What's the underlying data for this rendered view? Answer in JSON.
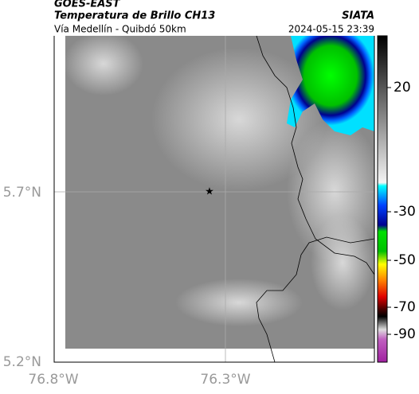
{
  "header": {
    "title": "GOES-EAST",
    "subtitle": "Temperatura de Brillo CH13",
    "description": "Vía Medellín - Quibdó 50km",
    "source": "SIATA",
    "timestamp": "2024-05-15 23:39"
  },
  "map": {
    "lat_labels": [
      "5.7°N",
      "5.2°N"
    ],
    "lon_labels": [
      "76.8°W",
      "76.3°W"
    ],
    "colorbar": {
      "ticks": [
        "20",
        "-30",
        "-50",
        "-70",
        "-90"
      ]
    }
  }
}
